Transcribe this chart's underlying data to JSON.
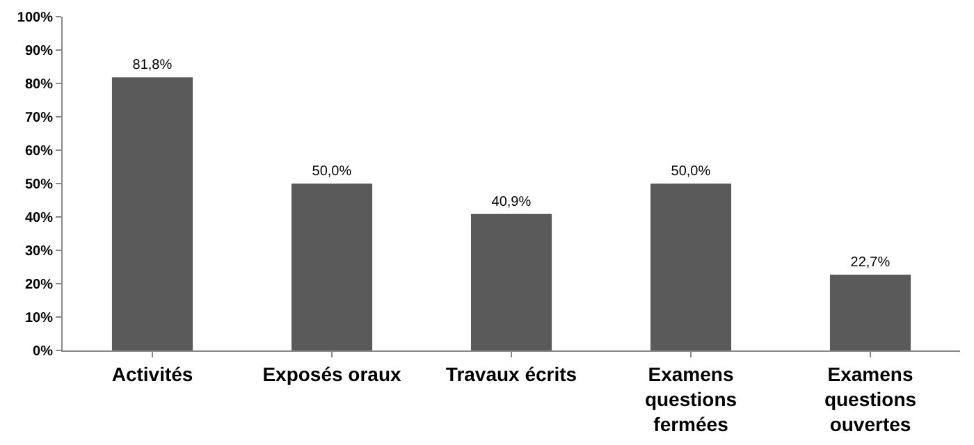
{
  "chart_data": {
    "type": "bar",
    "categories": [
      "Activités",
      "Exposés oraux",
      "Travaux écrits",
      "Examens questions fermées",
      "Examens questions ouvertes"
    ],
    "values": [
      81.8,
      50.0,
      40.9,
      50.0,
      22.7
    ],
    "value_labels": [
      "81,8%",
      "50,0%",
      "40,9%",
      "50,0%",
      "22,7%"
    ],
    "color": "#5a5a5a",
    "ylim": [
      0,
      100
    ],
    "yticks": [
      {
        "value": 0,
        "label": "0%"
      },
      {
        "value": 10,
        "label": "10%"
      },
      {
        "value": 20,
        "label": "20%"
      },
      {
        "value": 30,
        "label": "30%"
      },
      {
        "value": 40,
        "label": "40%"
      },
      {
        "value": 50,
        "label": "50%"
      },
      {
        "value": 60,
        "label": "60%"
      },
      {
        "value": 70,
        "label": "70%"
      },
      {
        "value": 80,
        "label": "80%"
      },
      {
        "value": 90,
        "label": "90%"
      },
      {
        "value": 100,
        "label": "100%"
      }
    ],
    "grid": false,
    "legend": false
  }
}
